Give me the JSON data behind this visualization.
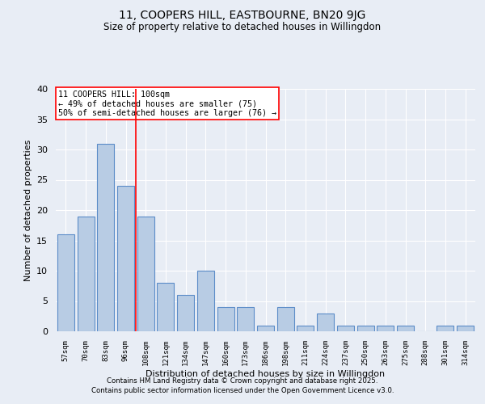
{
  "title1": "11, COOPERS HILL, EASTBOURNE, BN20 9JG",
  "title2": "Size of property relative to detached houses in Willingdon",
  "xlabel": "Distribution of detached houses by size in Willingdon",
  "ylabel": "Number of detached properties",
  "categories": [
    "57sqm",
    "70sqm",
    "83sqm",
    "96sqm",
    "108sqm",
    "121sqm",
    "134sqm",
    "147sqm",
    "160sqm",
    "173sqm",
    "186sqm",
    "198sqm",
    "211sqm",
    "224sqm",
    "237sqm",
    "250sqm",
    "263sqm",
    "275sqm",
    "288sqm",
    "301sqm",
    "314sqm"
  ],
  "values": [
    16,
    19,
    31,
    24,
    19,
    8,
    6,
    10,
    4,
    4,
    1,
    4,
    1,
    3,
    1,
    1,
    1,
    1,
    0,
    1,
    1
  ],
  "bar_color": "#b8cce4",
  "bar_edge_color": "#5b8cc8",
  "background_color": "#e8edf5",
  "grid_color": "#ffffff",
  "red_line_x": 3.5,
  "annotation_title": "11 COOPERS HILL: 100sqm",
  "annotation_line1": "← 49% of detached houses are smaller (75)",
  "annotation_line2": "50% of semi-detached houses are larger (76) →",
  "ylim": [
    0,
    40
  ],
  "yticks": [
    0,
    5,
    10,
    15,
    20,
    25,
    30,
    35,
    40
  ],
  "footnote1": "Contains HM Land Registry data © Crown copyright and database right 2025.",
  "footnote2": "Contains public sector information licensed under the Open Government Licence v3.0."
}
